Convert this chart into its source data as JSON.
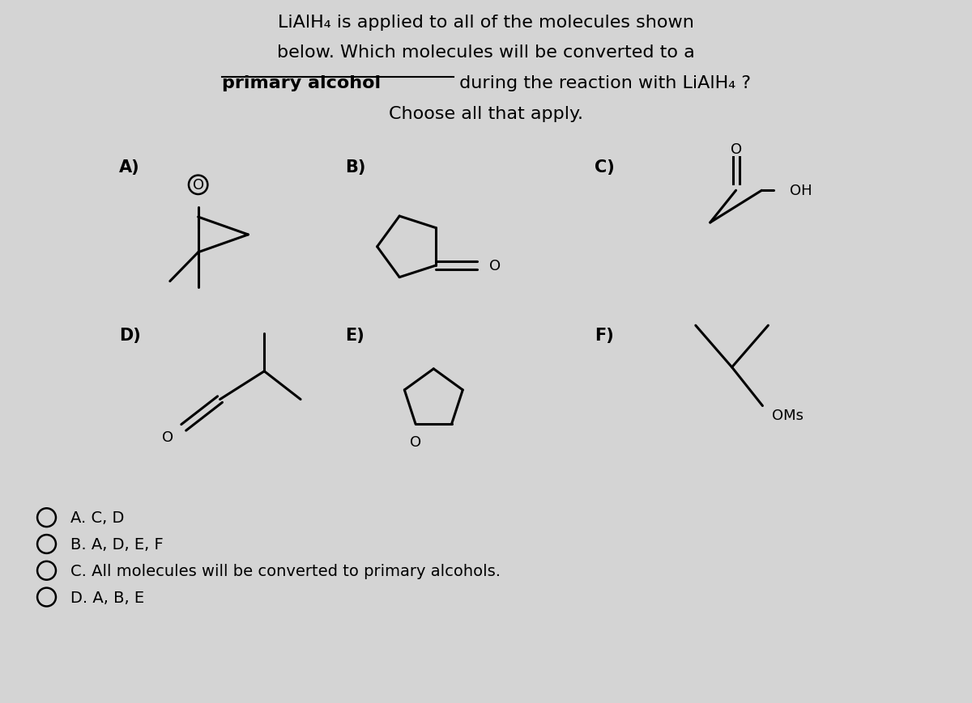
{
  "bg_color": "#d4d4d4",
  "text_color": "#000000",
  "title_line1": "LiAlH₄ is applied to all of the molecules shown",
  "title_line2": "below. Which molecules will be converted to a",
  "title_line3_bold": "primary alcohol",
  "title_line3_rest": " during the reaction with LiAlH₄ ?",
  "title_line4": "Choose all that apply.",
  "label_A": "A)",
  "label_B": "B)",
  "label_C": "C)",
  "label_D": "D)",
  "label_E": "E)",
  "label_F": "F)",
  "answer_A": "A. C, D",
  "answer_B": "B. A, D, E, F",
  "answer_C": "C. All molecules will be converted to primary alcohols.",
  "answer_D": "D. A, B, E",
  "label_fontsize": 15,
  "title_fontsize": 16,
  "ans_fontsize": 14,
  "mol_lw": 2.2
}
